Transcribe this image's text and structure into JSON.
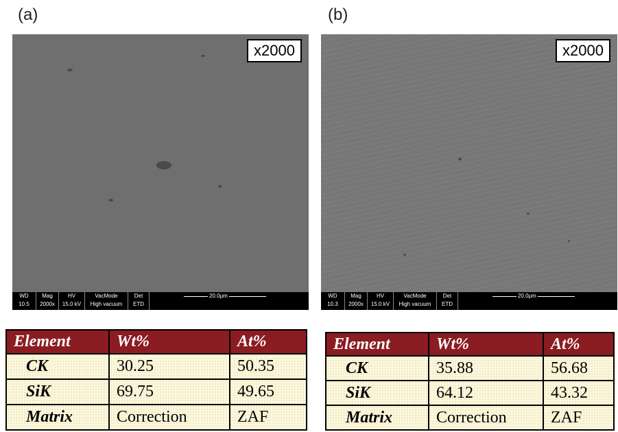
{
  "panels": [
    {
      "label": "(a)",
      "magnification": "x2000",
      "info_bar": {
        "headers": [
          "WD",
          "Mag",
          "HV",
          "VacMode",
          "Det"
        ],
        "values": [
          "10.5 mm",
          "2000x",
          "15.0 kV",
          "High vacuum",
          "ETD"
        ],
        "scale": "20.0μm"
      },
      "table": {
        "header": [
          "Element",
          "Wt%",
          "At%"
        ],
        "rows": [
          [
            "CK",
            "30.25",
            "50.35"
          ],
          [
            "SiK",
            "69.75",
            "49.65"
          ],
          [
            "Matrix",
            "Correction",
            "ZAF"
          ]
        ]
      }
    },
    {
      "label": "(b)",
      "magnification": "x2000",
      "info_bar": {
        "headers": [
          "WD",
          "Mag",
          "HV",
          "VacMode",
          "Det"
        ],
        "values": [
          "10.3 mm",
          "2000x",
          "15.0 kV",
          "High vacuum",
          "ETD"
        ],
        "scale": "20.0μm"
      },
      "table": {
        "header": [
          "Element",
          "Wt%",
          "At%"
        ],
        "rows": [
          [
            "CK",
            "35.88",
            "56.68"
          ],
          [
            "SiK",
            "64.12",
            "43.32"
          ],
          [
            "Matrix",
            "Correction",
            "ZAF"
          ]
        ]
      }
    }
  ]
}
